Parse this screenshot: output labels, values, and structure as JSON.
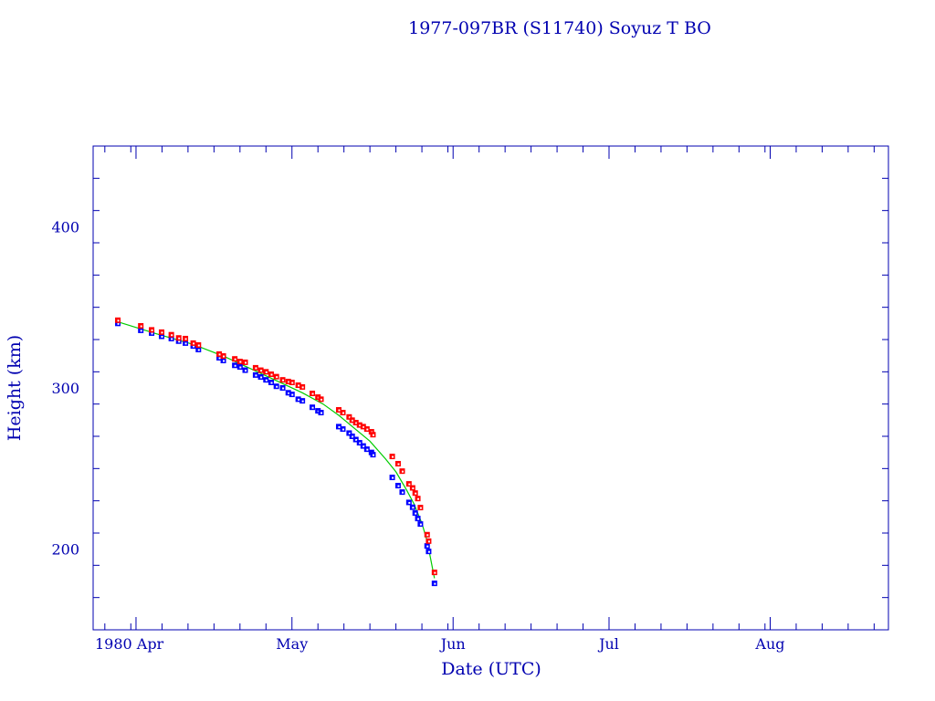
{
  "chart_data": {
    "type": "scatter",
    "title": "1977-097BR (S11740) Soyuz T BO",
    "xlabel": "Date (UTC)",
    "ylabel": "Height (km)",
    "xlim": [
      "1980-03-23T18:00",
      "1980-08-23T18:00"
    ],
    "ylim": [
      150,
      450
    ],
    "x_ticks": [
      {
        "date": "1980-04-01",
        "label": "1980 Apr"
      },
      {
        "date": "1980-05-01",
        "label": "May"
      },
      {
        "date": "1980-06-01",
        "label": "Jun"
      },
      {
        "date": "1980-07-01",
        "label": "Jul"
      },
      {
        "date": "1980-08-01",
        "label": "Aug"
      }
    ],
    "y_ticks": [
      200,
      300,
      400
    ],
    "y_minor_step": 20,
    "grid": false,
    "colors": {
      "axis": "#0000b0",
      "apogee": "#ff0000",
      "perigee": "#0000ff",
      "fit": "#00cc00"
    },
    "points": [
      {
        "date": "1980-03-28T12:00",
        "apogee": 342,
        "perigee": 340
      },
      {
        "date": "1980-04-01T22:00",
        "apogee": 338.5,
        "perigee": 335.7
      },
      {
        "date": "1980-04-04T00:00",
        "apogee": 336,
        "perigee": 334
      },
      {
        "date": "1980-04-05T22:00",
        "apogee": 334.6,
        "perigee": 332
      },
      {
        "date": "1980-04-07T19:00",
        "apogee": 333,
        "perigee": 330.6
      },
      {
        "date": "1980-04-09T05:00",
        "apogee": 331,
        "perigee": 329
      },
      {
        "date": "1980-04-10T12:00",
        "apogee": 330.6,
        "perigee": 327.8
      },
      {
        "date": "1980-04-12T00:00",
        "apogee": 327.8,
        "perigee": 326
      },
      {
        "date": "1980-04-13T00:00",
        "apogee": 326.6,
        "perigee": 323.8
      },
      {
        "date": "1980-04-17T00:00",
        "apogee": 321,
        "perigee": 318.7
      },
      {
        "date": "1980-04-17T19:00",
        "apogee": 319.8,
        "perigee": 317
      },
      {
        "date": "1980-04-20T00:00",
        "apogee": 318,
        "perigee": 314
      },
      {
        "date": "1980-04-21T00:00",
        "apogee": 316.4,
        "perigee": 313
      },
      {
        "date": "1980-04-22T00:00",
        "apogee": 315.9,
        "perigee": 311
      },
      {
        "date": "1980-04-24T00:00",
        "apogee": 312.5,
        "perigee": 308
      },
      {
        "date": "1980-04-25T00:00",
        "apogee": 311,
        "perigee": 306.8
      },
      {
        "date": "1980-04-26T00:00",
        "apogee": 310,
        "perigee": 305
      },
      {
        "date": "1980-04-27T00:00",
        "apogee": 308.5,
        "perigee": 303.4
      },
      {
        "date": "1980-04-28T00:00",
        "apogee": 307,
        "perigee": 301
      },
      {
        "date": "1980-04-29T05:00",
        "apogee": 305,
        "perigee": 300
      },
      {
        "date": "1980-04-30T07:00",
        "apogee": 304,
        "perigee": 297
      },
      {
        "date": "1980-05-01T00:00",
        "apogee": 303.4,
        "perigee": 296
      },
      {
        "date": "1980-05-02T05:00",
        "apogee": 301.7,
        "perigee": 293
      },
      {
        "date": "1980-05-03T00:00",
        "apogee": 300.6,
        "perigee": 292
      },
      {
        "date": "1980-05-04T22:00",
        "apogee": 296.6,
        "perigee": 288
      },
      {
        "date": "1980-05-06T00:00",
        "apogee": 294.3,
        "perigee": 285.8
      },
      {
        "date": "1980-05-06T14:00",
        "apogee": 293,
        "perigee": 284.7
      },
      {
        "date": "1980-05-10T00:00",
        "apogee": 286.4,
        "perigee": 276
      },
      {
        "date": "1980-05-10T19:00",
        "apogee": 284.7,
        "perigee": 274.5
      },
      {
        "date": "1980-05-12T00:00",
        "apogee": 282,
        "perigee": 272
      },
      {
        "date": "1980-05-12T14:00",
        "apogee": 280,
        "perigee": 270
      },
      {
        "date": "1980-05-13T07:00",
        "apogee": 278.5,
        "perigee": 268
      },
      {
        "date": "1980-05-14T00:00",
        "apogee": 277,
        "perigee": 266
      },
      {
        "date": "1980-05-14T17:00",
        "apogee": 276,
        "perigee": 264
      },
      {
        "date": "1980-05-15T10:00",
        "apogee": 274.5,
        "perigee": 262
      },
      {
        "date": "1980-05-16T07:00",
        "apogee": 272.8,
        "perigee": 260
      },
      {
        "date": "1980-05-16T14:00",
        "apogee": 271,
        "perigee": 258.6
      },
      {
        "date": "1980-05-20T07:00",
        "apogee": 257.5,
        "perigee": 244.5
      },
      {
        "date": "1980-05-21T10:00",
        "apogee": 253,
        "perigee": 239.4
      },
      {
        "date": "1980-05-22T05:00",
        "apogee": 248.4,
        "perigee": 235.4
      },
      {
        "date": "1980-05-23T12:00",
        "apogee": 240.5,
        "perigee": 229
      },
      {
        "date": "1980-05-24T05:00",
        "apogee": 238,
        "perigee": 226
      },
      {
        "date": "1980-05-24T17:00",
        "apogee": 234.8,
        "perigee": 222.4
      },
      {
        "date": "1980-05-25T05:00",
        "apogee": 231.4,
        "perigee": 219
      },
      {
        "date": "1980-05-25T17:00",
        "apogee": 225.8,
        "perigee": 215.6
      },
      {
        "date": "1980-05-27T00:00",
        "apogee": 209,
        "perigee": 202
      },
      {
        "date": "1980-05-27T07:00",
        "apogee": 205,
        "perigee": 198.6
      },
      {
        "date": "1980-05-28T10:00",
        "apogee": 185.6,
        "perigee": 178.8
      }
    ],
    "fit": [
      {
        "date": "1980-03-28T12:00",
        "height": 341
      },
      {
        "date": "1980-04-05T00:00",
        "height": 333.5
      },
      {
        "date": "1980-04-12T00:00",
        "height": 327
      },
      {
        "date": "1980-04-18T00:00",
        "height": 319.5
      },
      {
        "date": "1980-04-24T00:00",
        "height": 310.5
      },
      {
        "date": "1980-04-29T00:00",
        "height": 303
      },
      {
        "date": "1980-05-03T00:00",
        "height": 297
      },
      {
        "date": "1980-05-07T00:00",
        "height": 290
      },
      {
        "date": "1980-05-10T00:00",
        "height": 283
      },
      {
        "date": "1980-05-13T00:00",
        "height": 275
      },
      {
        "date": "1980-05-16T00:00",
        "height": 267
      },
      {
        "date": "1980-05-19T00:00",
        "height": 256
      },
      {
        "date": "1980-05-21T00:00",
        "height": 248
      },
      {
        "date": "1980-05-23T00:00",
        "height": 237
      },
      {
        "date": "1980-05-24T12:00",
        "height": 228
      },
      {
        "date": "1980-05-26T00:00",
        "height": 216
      },
      {
        "date": "1980-05-27T00:00",
        "height": 205
      },
      {
        "date": "1980-05-28T10:00",
        "height": 182
      }
    ]
  }
}
